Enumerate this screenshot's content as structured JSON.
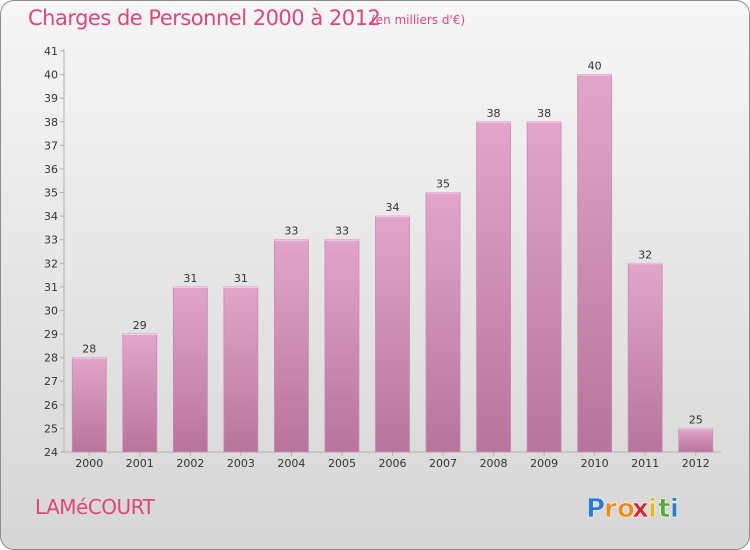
{
  "title": "Charges de Personnel 2000 à 2012",
  "subtitle": "(en milliers d'€)",
  "commune": "LAMéCOURT",
  "logo": {
    "letters": [
      "P",
      "r",
      "o",
      "x",
      "i",
      "t",
      "i"
    ],
    "colors": [
      "#2a7ccf",
      "#f08a1c",
      "#f08a1c",
      "#d9262c",
      "#e6b71d",
      "#5aa832",
      "#2a7ccf"
    ]
  },
  "colors": {
    "bar_top": "#e2a6ca",
    "bar_bottom": "#b8749c",
    "bar_edge": "#c98bb0",
    "axis": "#b0b0b0",
    "text": "#333333",
    "accent": "#e0457b"
  },
  "chart_data": {
    "type": "bar",
    "title": "Charges de Personnel 2000 à 2012",
    "xlabel": "",
    "ylabel": "(en milliers d'€)",
    "categories": [
      "2000",
      "2001",
      "2002",
      "2003",
      "2004",
      "2005",
      "2006",
      "2007",
      "2008",
      "2009",
      "2010",
      "2011",
      "2012"
    ],
    "values": [
      28,
      29,
      31,
      31,
      33,
      33,
      34,
      35,
      38,
      38,
      40,
      32,
      25
    ],
    "ylim": [
      24,
      41
    ],
    "yticks": [
      24,
      25,
      26,
      27,
      28,
      29,
      30,
      31,
      32,
      33,
      34,
      35,
      36,
      37,
      38,
      39,
      40,
      41
    ],
    "grid": false,
    "legend": "none"
  }
}
